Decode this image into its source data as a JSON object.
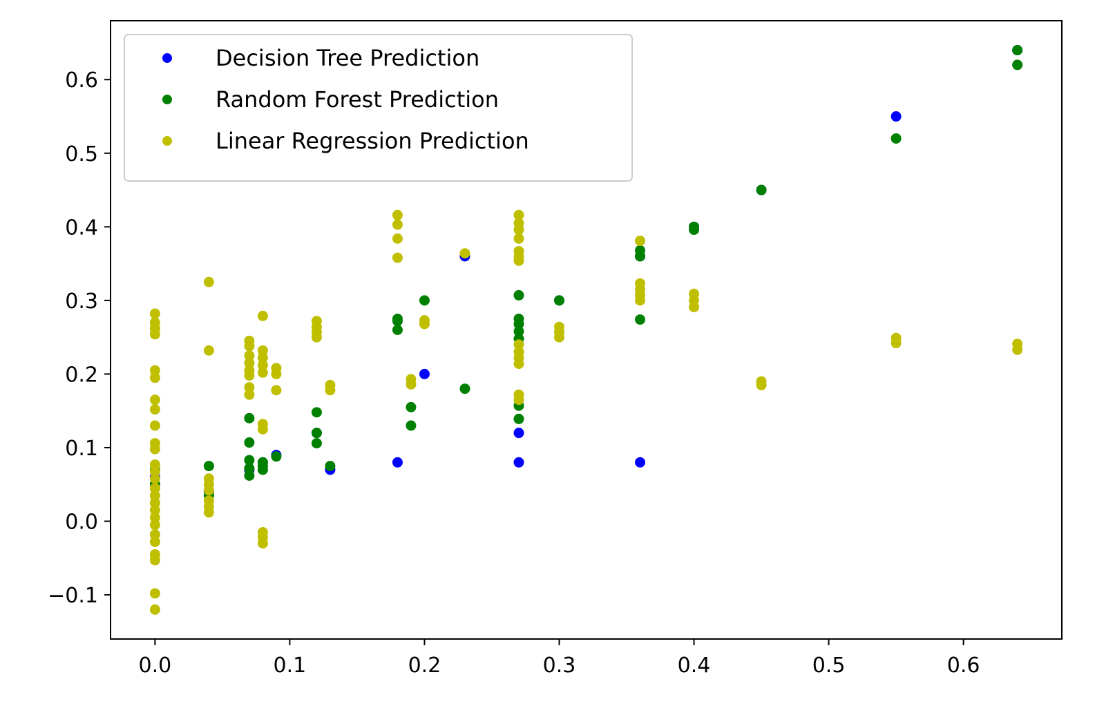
{
  "chart_data": {
    "type": "scatter",
    "title": "",
    "xlabel": "",
    "ylabel": "",
    "xlim": [
      -0.033,
      0.673
    ],
    "ylim": [
      -0.16,
      0.68
    ],
    "x_ticks": [
      0.0,
      0.1,
      0.2,
      0.3,
      0.4,
      0.5,
      0.6
    ],
    "x_tick_labels": [
      "0.0",
      "0.1",
      "0.2",
      "0.3",
      "0.4",
      "0.5",
      "0.6"
    ],
    "y_ticks": [
      -0.1,
      0.0,
      0.1,
      0.2,
      0.3,
      0.4,
      0.5,
      0.6
    ],
    "y_tick_labels": [
      "−0.1",
      "0.0",
      "0.1",
      "0.2",
      "0.3",
      "0.4",
      "0.5",
      "0.6"
    ],
    "grid": false,
    "legend_position": "top-left",
    "series": [
      {
        "name": "Decision Tree Prediction",
        "color": "#0000ff",
        "points": [
          [
            0.0,
            0.06
          ],
          [
            0.04,
            0.04
          ],
          [
            0.07,
            0.07
          ],
          [
            0.08,
            0.08
          ],
          [
            0.09,
            0.09
          ],
          [
            0.12,
            0.12
          ],
          [
            0.13,
            0.07
          ],
          [
            0.18,
            0.08
          ],
          [
            0.2,
            0.2
          ],
          [
            0.23,
            0.36
          ],
          [
            0.27,
            0.12
          ],
          [
            0.27,
            0.08
          ],
          [
            0.3,
            0.3
          ],
          [
            0.36,
            0.08
          ],
          [
            0.36,
            0.36
          ],
          [
            0.4,
            0.4
          ],
          [
            0.45,
            0.45
          ],
          [
            0.55,
            0.55
          ],
          [
            0.64,
            0.64
          ]
        ]
      },
      {
        "name": "Random Forest Prediction",
        "color": "#008000",
        "points": [
          [
            0.0,
            0.07
          ],
          [
            0.0,
            0.05
          ],
          [
            0.04,
            0.075
          ],
          [
            0.04,
            0.035
          ],
          [
            0.07,
            0.14
          ],
          [
            0.07,
            0.107
          ],
          [
            0.07,
            0.083
          ],
          [
            0.07,
            0.072
          ],
          [
            0.07,
            0.062
          ],
          [
            0.08,
            0.08
          ],
          [
            0.08,
            0.075
          ],
          [
            0.08,
            0.07
          ],
          [
            0.09,
            0.088
          ],
          [
            0.12,
            0.148
          ],
          [
            0.12,
            0.12
          ],
          [
            0.12,
            0.106
          ],
          [
            0.13,
            0.075
          ],
          [
            0.18,
            0.275
          ],
          [
            0.18,
            0.272
          ],
          [
            0.18,
            0.26
          ],
          [
            0.19,
            0.155
          ],
          [
            0.19,
            0.13
          ],
          [
            0.2,
            0.3
          ],
          [
            0.23,
            0.18
          ],
          [
            0.27,
            0.307
          ],
          [
            0.27,
            0.275
          ],
          [
            0.27,
            0.268
          ],
          [
            0.27,
            0.258
          ],
          [
            0.27,
            0.248
          ],
          [
            0.27,
            0.157
          ],
          [
            0.27,
            0.139
          ],
          [
            0.3,
            0.3
          ],
          [
            0.36,
            0.368
          ],
          [
            0.36,
            0.36
          ],
          [
            0.36,
            0.274
          ],
          [
            0.4,
            0.4
          ],
          [
            0.4,
            0.396
          ],
          [
            0.45,
            0.45
          ],
          [
            0.55,
            0.52
          ],
          [
            0.64,
            0.64
          ],
          [
            0.64,
            0.62
          ]
        ]
      },
      {
        "name": "Linear Regression Prediction",
        "color": "#bfbf00",
        "points": [
          [
            0.0,
            0.282
          ],
          [
            0.0,
            0.27
          ],
          [
            0.0,
            0.262
          ],
          [
            0.0,
            0.254
          ],
          [
            0.0,
            0.205
          ],
          [
            0.0,
            0.195
          ],
          [
            0.0,
            0.165
          ],
          [
            0.0,
            0.152
          ],
          [
            0.0,
            0.13
          ],
          [
            0.0,
            0.106
          ],
          [
            0.0,
            0.098
          ],
          [
            0.0,
            0.077
          ],
          [
            0.0,
            0.068
          ],
          [
            0.0,
            0.058
          ],
          [
            0.0,
            0.045
          ],
          [
            0.0,
            0.035
          ],
          [
            0.0,
            0.025
          ],
          [
            0.0,
            0.015
          ],
          [
            0.0,
            0.005
          ],
          [
            0.0,
            -0.005
          ],
          [
            0.0,
            -0.018
          ],
          [
            0.0,
            -0.028
          ],
          [
            0.0,
            -0.045
          ],
          [
            0.0,
            -0.053
          ],
          [
            0.0,
            -0.098
          ],
          [
            0.0,
            -0.12
          ],
          [
            0.04,
            0.325
          ],
          [
            0.04,
            0.232
          ],
          [
            0.04,
            0.058
          ],
          [
            0.04,
            0.05
          ],
          [
            0.04,
            0.042
          ],
          [
            0.04,
            0.028
          ],
          [
            0.04,
            0.02
          ],
          [
            0.04,
            0.012
          ],
          [
            0.07,
            0.245
          ],
          [
            0.07,
            0.238
          ],
          [
            0.07,
            0.225
          ],
          [
            0.07,
            0.215
          ],
          [
            0.07,
            0.205
          ],
          [
            0.07,
            0.198
          ],
          [
            0.07,
            0.182
          ],
          [
            0.07,
            0.172
          ],
          [
            0.08,
            0.279
          ],
          [
            0.08,
            0.232
          ],
          [
            0.08,
            0.222
          ],
          [
            0.08,
            0.212
          ],
          [
            0.08,
            0.202
          ],
          [
            0.08,
            0.132
          ],
          [
            0.08,
            0.125
          ],
          [
            0.08,
            -0.015
          ],
          [
            0.08,
            -0.022
          ],
          [
            0.08,
            -0.03
          ],
          [
            0.09,
            0.208
          ],
          [
            0.09,
            0.2
          ],
          [
            0.09,
            0.178
          ],
          [
            0.12,
            0.272
          ],
          [
            0.12,
            0.264
          ],
          [
            0.12,
            0.257
          ],
          [
            0.12,
            0.25
          ],
          [
            0.13,
            0.185
          ],
          [
            0.13,
            0.178
          ],
          [
            0.18,
            0.416
          ],
          [
            0.18,
            0.403
          ],
          [
            0.18,
            0.384
          ],
          [
            0.18,
            0.358
          ],
          [
            0.19,
            0.193
          ],
          [
            0.19,
            0.186
          ],
          [
            0.2,
            0.273
          ],
          [
            0.2,
            0.268
          ],
          [
            0.23,
            0.364
          ],
          [
            0.27,
            0.416
          ],
          [
            0.27,
            0.405
          ],
          [
            0.27,
            0.396
          ],
          [
            0.27,
            0.384
          ],
          [
            0.27,
            0.367
          ],
          [
            0.27,
            0.36
          ],
          [
            0.27,
            0.354
          ],
          [
            0.27,
            0.24
          ],
          [
            0.27,
            0.23
          ],
          [
            0.27,
            0.222
          ],
          [
            0.27,
            0.214
          ],
          [
            0.27,
            0.172
          ],
          [
            0.27,
            0.165
          ],
          [
            0.3,
            0.264
          ],
          [
            0.3,
            0.257
          ],
          [
            0.3,
            0.25
          ],
          [
            0.36,
            0.381
          ],
          [
            0.36,
            0.323
          ],
          [
            0.36,
            0.315
          ],
          [
            0.36,
            0.307
          ],
          [
            0.36,
            0.3
          ],
          [
            0.4,
            0.309
          ],
          [
            0.4,
            0.3
          ],
          [
            0.4,
            0.291
          ],
          [
            0.45,
            0.19
          ],
          [
            0.45,
            0.185
          ],
          [
            0.55,
            0.249
          ],
          [
            0.55,
            0.242
          ],
          [
            0.64,
            0.241
          ],
          [
            0.64,
            0.233
          ]
        ]
      }
    ]
  }
}
